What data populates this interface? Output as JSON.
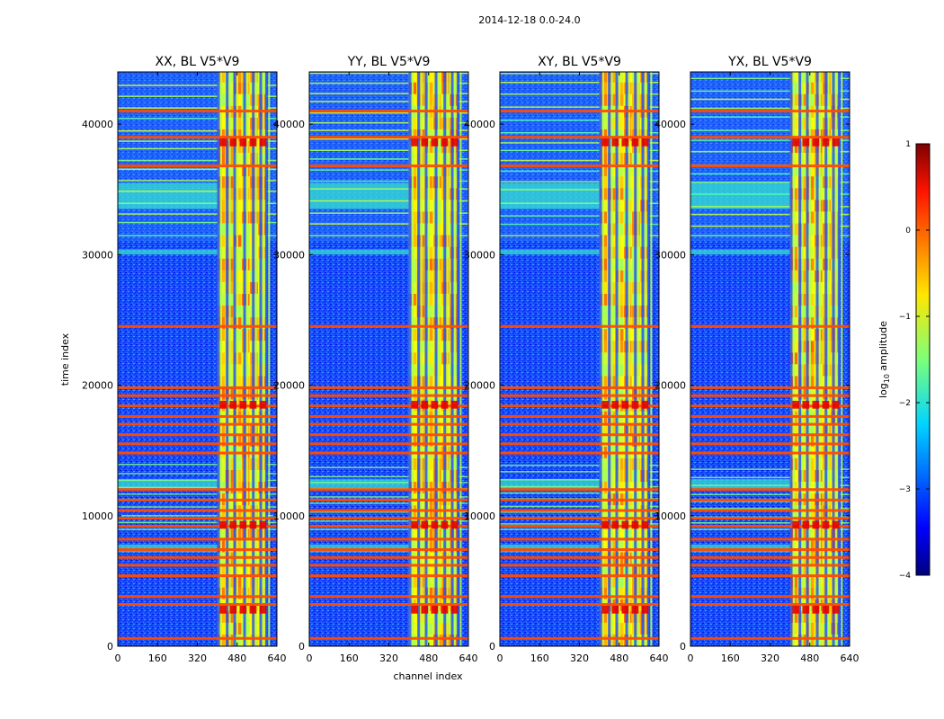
{
  "figure": {
    "suptitle": "2014-12-18 0.0-24.0"
  },
  "chart_data": {
    "type": "heatmap",
    "xlabel": "channel index",
    "ylabel": "time index",
    "xlim": [
      0,
      640
    ],
    "ylim": [
      0,
      44000
    ],
    "x_ticks": [
      0,
      160,
      320,
      480,
      640
    ],
    "y_ticks": [
      0,
      10000,
      20000,
      30000,
      40000
    ],
    "panels": [
      {
        "title": "XX, BL V5*V9",
        "pol": "XX"
      },
      {
        "title": "YY, BL V5*V9",
        "pol": "YY"
      },
      {
        "title": "XY, BL V5*V9",
        "pol": "XY"
      },
      {
        "title": "YX, BL V5*V9",
        "pol": "YX"
      }
    ],
    "colorbar": {
      "label": "log",
      "label_sub": "10",
      "label_suffix": " amplitude",
      "range": [
        -4,
        1
      ],
      "ticks": [
        1,
        0,
        -1,
        -2,
        -3,
        -4
      ],
      "tick_labels": [
        "1",
        "0",
        "−1",
        "−2",
        "−3",
        "−4"
      ],
      "colormap": "jet"
    },
    "features": {
      "band_channels": [
        400,
        598
      ],
      "bright_columns": [
        405,
        440,
        470,
        510,
        545,
        575,
        598
      ],
      "rfi_time_rows": [
        600,
        3200,
        3800,
        5400,
        6200,
        6800,
        7400,
        8200,
        9200,
        9800,
        10400,
        11200,
        12000,
        14800,
        15500,
        16200,
        17000,
        17600,
        18400,
        19200,
        19800,
        24500,
        36800,
        39000,
        41000
      ],
      "cyan_bands": [
        [
          7200,
          7800
        ],
        [
          12000,
          12800
        ],
        [
          30000,
          30400
        ],
        [
          33500,
          35500
        ]
      ]
    }
  }
}
